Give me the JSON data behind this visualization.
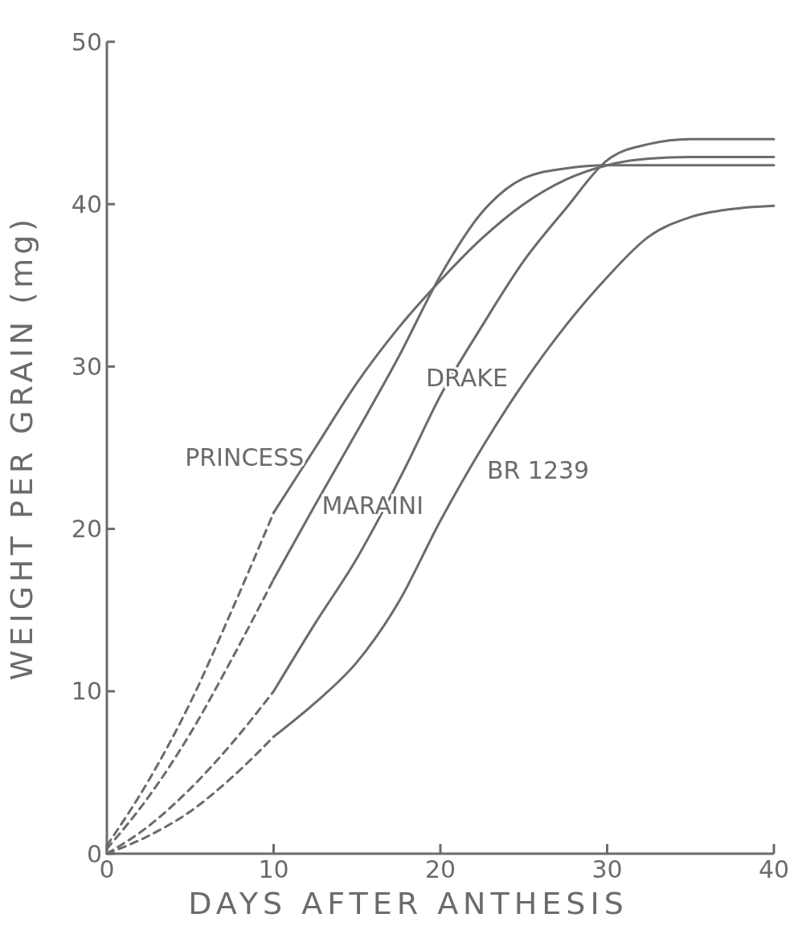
{
  "chart_data": {
    "type": "line",
    "xlabel": "DAYS   AFTER   ANTHESIS",
    "ylabel": "WEIGHT   PER   GRAIN   (mg)",
    "xlim": [
      0,
      40
    ],
    "ylim": [
      0,
      50
    ],
    "xticks": [
      0,
      10,
      20,
      30,
      40
    ],
    "yticks": [
      0,
      10,
      20,
      30,
      40,
      50
    ],
    "grid": false,
    "marker": "none",
    "series": [
      {
        "name": "PRINCESS",
        "color": "#6b6b6b",
        "line_style": "solid",
        "x": [
          10,
          12.5,
          15,
          17.5,
          20,
          22.5,
          25,
          27.5,
          30,
          32.5,
          35,
          40
        ],
        "values": [
          21,
          25,
          29,
          32.4,
          35.3,
          37.9,
          40,
          41.5,
          42.4,
          42.8,
          42.9,
          42.9
        ]
      },
      {
        "name": "MARAINI",
        "color": "#6b6b6b",
        "line_style": "solid",
        "x": [
          10,
          12.5,
          15,
          17.5,
          20,
          22.5,
          25,
          27.5,
          30,
          40
        ],
        "values": [
          16.9,
          21.5,
          26,
          30.6,
          35.6,
          39.5,
          41.6,
          42.2,
          42.4,
          42.4
        ]
      },
      {
        "name": "DRAKE",
        "color": "#6b6b6b",
        "line_style": "solid",
        "x": [
          10,
          12.5,
          15,
          16.5,
          18,
          20,
          22.5,
          25,
          27.5,
          30,
          32.5,
          35,
          40
        ],
        "values": [
          10,
          14.2,
          18.2,
          21,
          24,
          28.2,
          32.5,
          36.5,
          39.7,
          42.7,
          43.7,
          44,
          44
        ]
      },
      {
        "name": "BR 1239",
        "color": "#6b6b6b",
        "line_style": "solid",
        "x": [
          10,
          12.5,
          15,
          17.5,
          20,
          22.5,
          25,
          27.5,
          30,
          32.5,
          35,
          37.5,
          40
        ],
        "values": [
          7.2,
          9.3,
          11.8,
          15.5,
          20.5,
          25,
          29,
          32.5,
          35.5,
          38,
          39.2,
          39.7,
          39.9
        ]
      },
      {
        "color": "#6b6b6b",
        "line_style": "dashed",
        "x": [
          0,
          2.5,
          5,
          7.5,
          10
        ],
        "values": [
          0.5,
          4.5,
          9.3,
          15,
          21
        ]
      },
      {
        "color": "#6b6b6b",
        "line_style": "dashed",
        "x": [
          0,
          2.5,
          5,
          7.5,
          10
        ],
        "values": [
          0.3,
          3.5,
          7.4,
          12,
          16.9
        ]
      },
      {
        "color": "#6b6b6b",
        "line_style": "dashed",
        "x": [
          0,
          2.5,
          5,
          7.5,
          10
        ],
        "values": [
          0,
          1.7,
          4,
          6.8,
          10
        ]
      },
      {
        "color": "#6b6b6b",
        "line_style": "dashed",
        "x": [
          0,
          2.5,
          5,
          7.5,
          10
        ],
        "values": [
          0,
          1.1,
          2.6,
          4.7,
          7.2
        ]
      }
    ]
  }
}
